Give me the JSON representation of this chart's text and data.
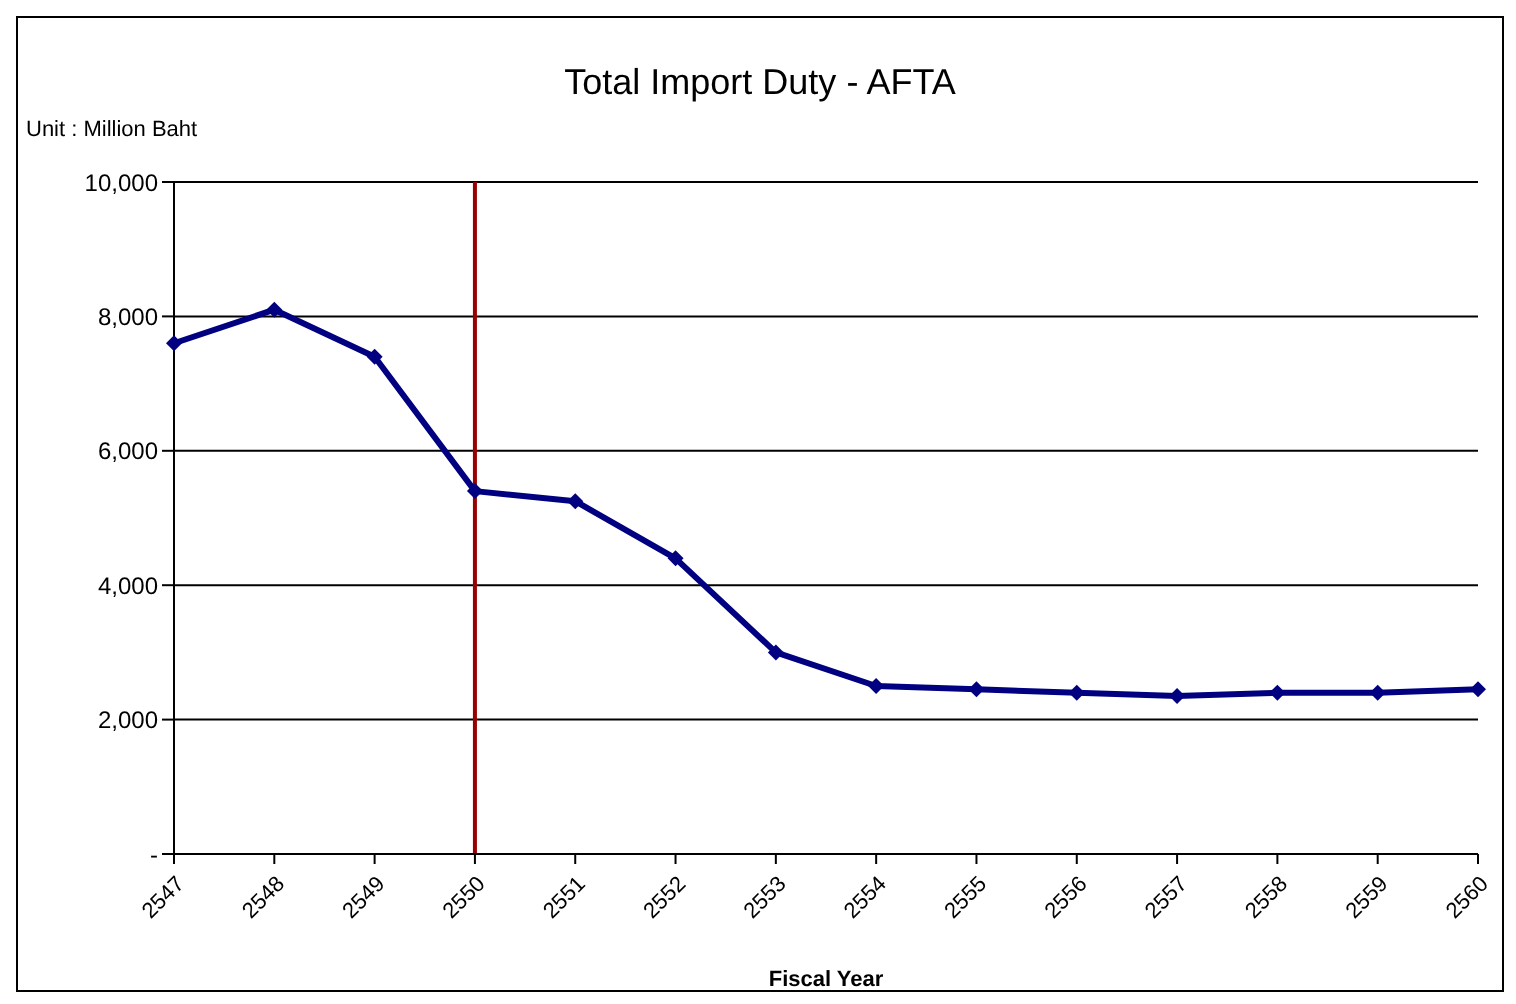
{
  "chart_data": {
    "type": "line",
    "title": "Total Import Duty - AFTA",
    "xlabel": "Fiscal Year",
    "annotations": [
      "Unit : Million Baht"
    ],
    "categories": [
      "2547",
      "2548",
      "2549",
      "2550",
      "2551",
      "2552",
      "2553",
      "2554",
      "2555",
      "2556",
      "2557",
      "2558",
      "2559",
      "2560"
    ],
    "series": [
      {
        "color": "#000080",
        "values": [
          7600,
          8100,
          7400,
          5400,
          5250,
          4400,
          3000,
          2500,
          2450,
          2400,
          2350,
          2400,
          2400,
          2450
        ]
      }
    ],
    "ylim": [
      0,
      10000
    ],
    "yticks": [
      {
        "value": 0,
        "label": "-"
      },
      {
        "value": 2000,
        "label": "2,000"
      },
      {
        "value": 4000,
        "label": "4,000"
      },
      {
        "value": 6000,
        "label": "6,000"
      },
      {
        "value": 8000,
        "label": "8,000"
      },
      {
        "value": 10000,
        "label": "10,000"
      }
    ],
    "ref_lines": [
      {
        "axis": "x",
        "value": "2550",
        "color": "#990000"
      }
    ],
    "grid": "y",
    "legend": false,
    "marker": "diamond",
    "line_style": "solid"
  }
}
